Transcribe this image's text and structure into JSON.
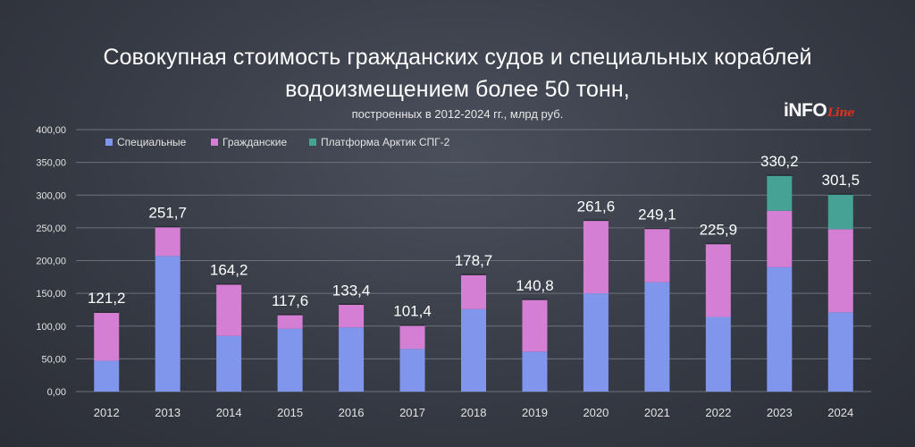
{
  "header": {
    "title_line1": "Совокупная стоимость гражданских судов и специальных кораблей",
    "title_line2": "водоизмещением более 50 тонн,",
    "subtitle": "построенных в 2012-2024 гг., млрд руб."
  },
  "logo": {
    "main": "iNFO",
    "accent": "Line"
  },
  "colors": {
    "special": "#7f96ec",
    "civil": "#d57fd4",
    "platform": "#45a295",
    "grid": "#6d717b",
    "axis_text": "#e3e3e3",
    "total_text": "#ffffff"
  },
  "chart_data": {
    "type": "bar",
    "stacked": true,
    "categories": [
      "2012",
      "2013",
      "2014",
      "2015",
      "2016",
      "2017",
      "2018",
      "2019",
      "2020",
      "2021",
      "2022",
      "2023",
      "2024"
    ],
    "series": [
      {
        "name": "Специальные",
        "values": [
          47,
          207,
          85,
          96,
          98,
          65,
          126,
          61,
          150,
          167,
          114,
          190,
          121
        ]
      },
      {
        "name": "Гражданские",
        "values": [
          74.2,
          44.7,
          79.2,
          21.6,
          35.4,
          36.4,
          52.7,
          79.8,
          111.6,
          82.1,
          111.9,
          86,
          127
        ]
      },
      {
        "name": "Платформа Арктик СПГ-2",
        "values": [
          0,
          0,
          0,
          0,
          0,
          0,
          0,
          0,
          0,
          0,
          0,
          54.2,
          53.5
        ]
      }
    ],
    "totals_labels": [
      "121,2",
      "251,7",
      "164,2",
      "117,6",
      "133,4",
      "101,4",
      "178,7",
      "140,8",
      "261,6",
      "249,1",
      "225,9",
      "330,2",
      "301,5"
    ],
    "yticks": [
      0,
      50,
      100,
      150,
      200,
      250,
      300,
      350,
      400
    ],
    "ytick_labels": [
      "0,00",
      "50,00",
      "100,00",
      "150,00",
      "200,00",
      "250,00",
      "300,00",
      "350,00",
      "400,00"
    ],
    "ylim": [
      0,
      400
    ],
    "legend_position": "top-left",
    "grid": true
  }
}
